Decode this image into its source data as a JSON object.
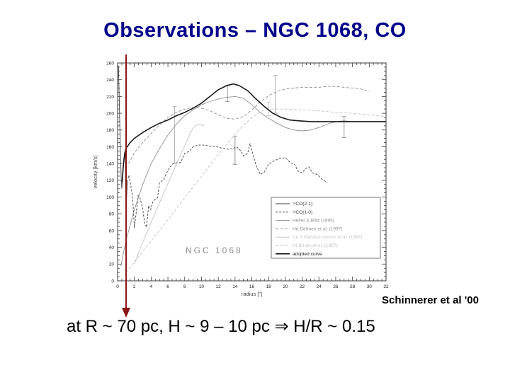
{
  "slide": {
    "title": "Observations – NGC 1068, CO",
    "attribution": "Schinnerer et al '00",
    "caption": "at R ~ 70 pc, H ~ 9 – 10 pc ⇒ H/R ~ 0.15",
    "colors": {
      "title": "#00008B",
      "arrow": "#8B1616",
      "text": "#000000"
    }
  },
  "chart_data": {
    "type": "line",
    "title": "",
    "inner_label": "NGC 1068",
    "xlabel": "radius [\"]",
    "ylabel": "velocity [km/s]",
    "xlim": [
      0,
      32
    ],
    "ylim": [
      0,
      260
    ],
    "xtick_step": 2,
    "xtick_minor": 0.5,
    "ytick_step": 20,
    "ytick_minor": 5,
    "grid": false,
    "legend_position": "lower-right",
    "frame_color": "#3a3a3a",
    "tick_label_color": "#222222",
    "axis_label_color": "#444444",
    "inner_label_color": "#8d8d8d",
    "series": [
      {
        "name": "co21",
        "label": "¹²CO(2-1)",
        "color": "#3f3f3f",
        "dash": null,
        "width": 0.9,
        "points": [
          [
            0.1,
            257
          ],
          [
            0.2,
            215
          ],
          [
            0.3,
            168
          ],
          [
            0.42,
            125
          ],
          [
            0.5,
            110
          ],
          [
            0.62,
            125
          ],
          [
            0.72,
            140
          ],
          [
            0.82,
            150
          ],
          [
            0.9,
            155
          ],
          [
            0.94,
            125
          ],
          [
            0.98,
            90
          ],
          [
            1.02,
            78
          ],
          [
            1.08,
            100
          ],
          [
            1.15,
            118
          ]
        ]
      },
      {
        "name": "co10",
        "label": "¹²CO(1-0)",
        "color": "#3f3f3f",
        "dash": "3 2",
        "width": 0.9,
        "points": [
          [
            1.15,
            118
          ],
          [
            1.35,
            126
          ],
          [
            1.6,
            112
          ],
          [
            1.8,
            100
          ],
          [
            2,
            63
          ],
          [
            2.2,
            80
          ],
          [
            2.45,
            102
          ],
          [
            2.7,
            98
          ],
          [
            3,
            86
          ],
          [
            3.2,
            70
          ],
          [
            3.45,
            64
          ],
          [
            3.7,
            90
          ],
          [
            3.95,
            85
          ],
          [
            4.15,
            93
          ],
          [
            4.45,
            97
          ],
          [
            4.75,
            99
          ],
          [
            5,
            117
          ],
          [
            5.5,
            121
          ],
          [
            6,
            132
          ],
          [
            6.5,
            139
          ],
          [
            7,
            141
          ],
          [
            7.5,
            141
          ],
          [
            8,
            152
          ],
          [
            8.6,
            155
          ],
          [
            9,
            160
          ],
          [
            9.6,
            162
          ],
          [
            10.2,
            162
          ],
          [
            11,
            161
          ],
          [
            11.8,
            160
          ],
          [
            12.6,
            158
          ],
          [
            13.2,
            157
          ],
          [
            13.8,
            158
          ],
          [
            14.2,
            160
          ],
          [
            14.7,
            155
          ],
          [
            15,
            149
          ],
          [
            15.5,
            152
          ],
          [
            15.8,
            164
          ],
          [
            16.1,
            152
          ],
          [
            16.5,
            138
          ],
          [
            17,
            127
          ],
          [
            17.5,
            130
          ],
          [
            18,
            139
          ],
          [
            18.6,
            143
          ],
          [
            19.3,
            146
          ],
          [
            20,
            147
          ],
          [
            20.6,
            141
          ],
          [
            21.1,
            139
          ],
          [
            21.5,
            131
          ],
          [
            22,
            129
          ],
          [
            22.4,
            134
          ],
          [
            22.8,
            136
          ],
          [
            23.2,
            129
          ],
          [
            23.8,
            127
          ],
          [
            24.3,
            122
          ],
          [
            25,
            117
          ]
        ]
      },
      {
        "name": "helfer",
        "label": "Helfer & Blitz (1995)",
        "color": "#8f8f8f",
        "dash": null,
        "width": 0.9,
        "points": [
          [
            0.4,
            18
          ],
          [
            1,
            48
          ],
          [
            2,
            85
          ],
          [
            3,
            115
          ],
          [
            4,
            140
          ],
          [
            5,
            158
          ],
          [
            6,
            174
          ],
          [
            7,
            187
          ],
          [
            8,
            197
          ],
          [
            9,
            204
          ],
          [
            10,
            210
          ],
          [
            11,
            214
          ],
          [
            12,
            217
          ],
          [
            13,
            219
          ],
          [
            14,
            220
          ],
          [
            15,
            218
          ],
          [
            16,
            210
          ],
          [
            17,
            201
          ],
          [
            18,
            194
          ],
          [
            19,
            188
          ],
          [
            20,
            183
          ],
          [
            21,
            180
          ],
          [
            22,
            179
          ],
          [
            23,
            180
          ],
          [
            24,
            183
          ],
          [
            25,
            187
          ],
          [
            26,
            190
          ],
          [
            27,
            191
          ],
          [
            28,
            190
          ],
          [
            30,
            190
          ],
          [
            32,
            190
          ]
        ]
      },
      {
        "name": "halpha",
        "label": "Hα Dehnen et al. (1997)",
        "color": "#8f8f8f",
        "dash": "4 2.5",
        "width": 0.9,
        "points": [
          [
            1.3,
            140
          ],
          [
            2,
            153
          ],
          [
            3,
            165
          ],
          [
            4,
            176
          ],
          [
            5,
            186
          ],
          [
            6,
            195
          ],
          [
            7,
            201
          ],
          [
            8,
            205
          ],
          [
            9,
            207
          ],
          [
            10,
            206
          ],
          [
            11,
            203
          ],
          [
            12,
            198
          ],
          [
            13,
            194
          ],
          [
            14,
            193
          ],
          [
            15,
            196
          ],
          [
            16,
            204
          ],
          [
            17,
            213
          ],
          [
            18,
            221
          ],
          [
            19,
            226
          ],
          [
            20,
            229
          ],
          [
            21,
            230
          ],
          [
            22,
            231
          ],
          [
            23,
            231
          ],
          [
            24,
            231
          ],
          [
            25,
            232
          ],
          [
            26,
            232
          ],
          [
            27,
            231
          ],
          [
            28,
            230
          ],
          [
            29,
            229
          ],
          [
            30,
            226
          ]
        ]
      },
      {
        "name": "caii",
        "label": "Ca II García-Lorenzo et al. (1997)",
        "color": "#c2c2c2",
        "dash": null,
        "width": 0.9,
        "points": [
          [
            2,
            20
          ],
          [
            3,
            46
          ],
          [
            4,
            70
          ],
          [
            5,
            93
          ],
          [
            6,
            116
          ],
          [
            7,
            139
          ],
          [
            8,
            161
          ],
          [
            8.6,
            175
          ],
          [
            9.1,
            184
          ],
          [
            9.7,
            187
          ],
          [
            10.3,
            185
          ]
        ]
      },
      {
        "name": "brinks",
        "label": "HI Brinks et al. (1997)",
        "color": "#c2c2c2",
        "dash": "4 2.5",
        "width": 0.9,
        "points": [
          [
            1,
            10
          ],
          [
            3,
            35
          ],
          [
            5,
            60
          ],
          [
            7,
            86
          ],
          [
            9,
            112
          ],
          [
            11,
            138
          ],
          [
            13,
            163
          ],
          [
            15,
            186
          ],
          [
            16.3,
            197
          ],
          [
            17.3,
            203
          ],
          [
            18.5,
            205
          ],
          [
            20,
            205
          ],
          [
            22,
            204
          ],
          [
            24,
            203
          ],
          [
            26,
            201
          ],
          [
            28,
            200
          ],
          [
            30,
            198
          ],
          [
            32,
            196
          ]
        ]
      },
      {
        "name": "adopted",
        "label": "adopted curve",
        "color": "#1a1a1a",
        "dash": null,
        "width": 1.6,
        "points": [
          [
            0.55,
            118
          ],
          [
            0.7,
            140
          ],
          [
            0.85,
            152
          ],
          [
            1,
            158
          ],
          [
            1.5,
            165
          ],
          [
            2,
            170
          ],
          [
            3,
            177
          ],
          [
            4,
            183
          ],
          [
            5,
            188
          ],
          [
            6,
            192
          ],
          [
            7,
            197
          ],
          [
            8,
            201
          ],
          [
            9,
            206
          ],
          [
            10,
            212
          ],
          [
            11,
            220
          ],
          [
            12,
            228
          ],
          [
            13,
            233
          ],
          [
            13.8,
            235
          ],
          [
            14.5,
            233
          ],
          [
            15.5,
            227
          ],
          [
            16.5,
            217
          ],
          [
            17.5,
            208
          ],
          [
            18.5,
            200
          ],
          [
            19.5,
            195
          ],
          [
            20.5,
            192
          ],
          [
            21.5,
            191
          ],
          [
            23,
            190
          ],
          [
            26,
            190
          ],
          [
            29,
            190
          ],
          [
            32,
            190
          ]
        ]
      }
    ],
    "error_bars": [
      {
        "x": 6.8,
        "y1": 140,
        "y2": 208,
        "color": "#b8b8b8"
      },
      {
        "x": 13.1,
        "y1": 214,
        "y2": 233,
        "color": "#9a9a9a"
      },
      {
        "x": 14,
        "y1": 139,
        "y2": 172,
        "color": "#8f8f8f"
      },
      {
        "x": 18,
        "y1": 197,
        "y2": 213,
        "color": "#c6c6c6"
      },
      {
        "x": 18.8,
        "y1": 200,
        "y2": 245,
        "color": "#aaaaaa"
      },
      {
        "x": 27,
        "y1": 171,
        "y2": 196,
        "color": "#9a9a9a"
      }
    ]
  }
}
